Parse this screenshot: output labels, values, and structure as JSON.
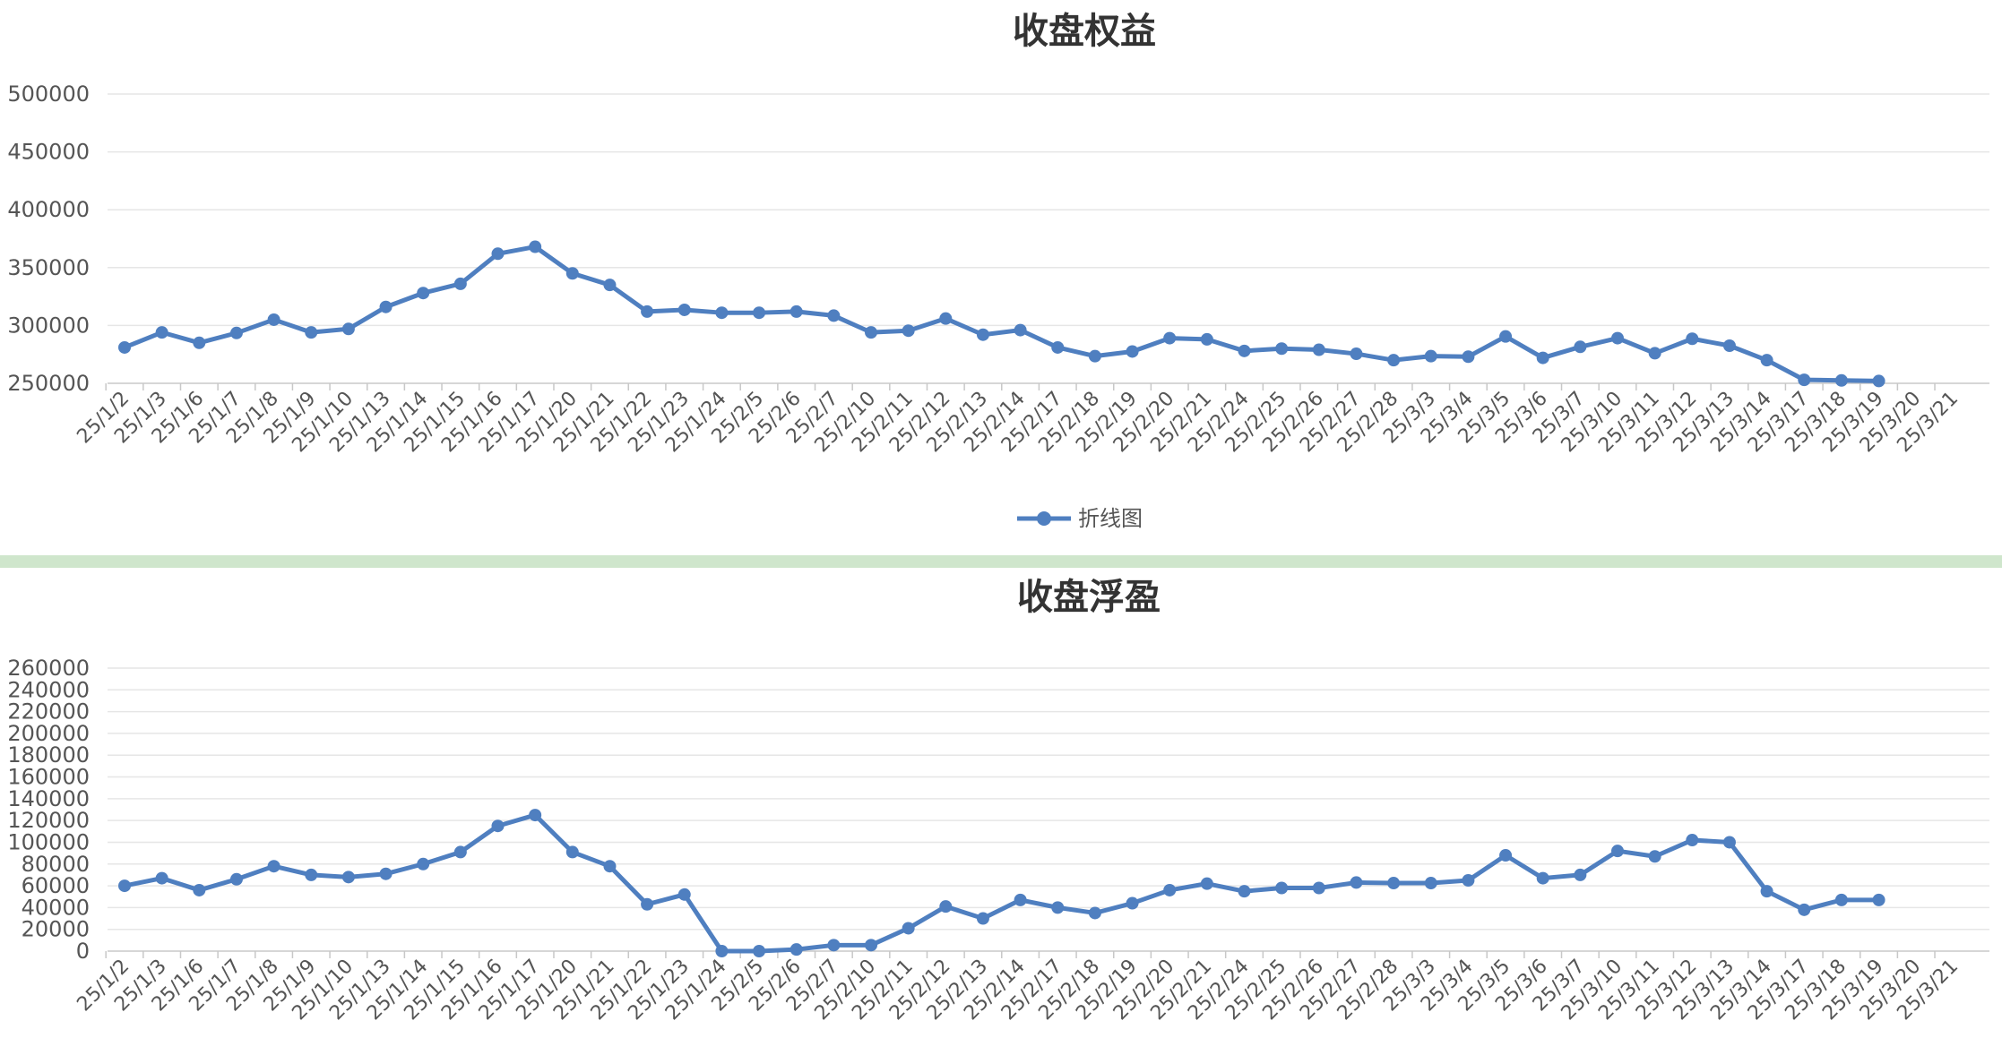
{
  "chart_data": [
    {
      "type": "line",
      "title": "收盘权益",
      "categories": [
        "25/1/2",
        "25/1/3",
        "25/1/6",
        "25/1/7",
        "25/1/8",
        "25/1/9",
        "25/1/10",
        "25/1/13",
        "25/1/14",
        "25/1/15",
        "25/1/16",
        "25/1/17",
        "25/1/20",
        "25/1/21",
        "25/1/22",
        "25/1/23",
        "25/1/24",
        "25/2/5",
        "25/2/6",
        "25/2/7",
        "25/2/10",
        "25/2/11",
        "25/2/12",
        "25/2/13",
        "25/2/14",
        "25/2/17",
        "25/2/18",
        "25/2/19",
        "25/2/20",
        "25/2/21",
        "25/2/24",
        "25/2/25",
        "25/2/26",
        "25/2/27",
        "25/2/28",
        "25/3/3",
        "25/3/4",
        "25/3/5",
        "25/3/6",
        "25/3/7",
        "25/3/10",
        "25/3/11",
        "25/3/12",
        "25/3/13",
        "25/3/14",
        "25/3/17",
        "25/3/18",
        "25/3/19",
        "25/3/20",
        "25/3/21"
      ],
      "series": [
        {
          "name": "折线图",
          "color": "#4f7fc0",
          "values": [
            281000,
            294000,
            285000,
            293500,
            305000,
            294000,
            297000,
            316000,
            328000,
            336000,
            362000,
            368000,
            345000,
            335000,
            312000,
            313500,
            311000,
            311000,
            312000,
            308500,
            294000,
            295500,
            306000,
            292000,
            296000,
            281000,
            273500,
            277500,
            289000,
            288000,
            278000,
            280000,
            279000,
            275500,
            270000,
            273500,
            273000,
            290500,
            272000,
            281500,
            289000,
            276000,
            288500,
            282500,
            270000,
            253000,
            252500,
            252000,
            null,
            null
          ]
        }
      ],
      "ylim": [
        250000,
        500000
      ],
      "yticks": [
        250000,
        300000,
        350000,
        400000,
        450000,
        500000
      ],
      "legend": "bottom-center",
      "grid": true
    },
    {
      "type": "line",
      "title": "收盘浮盈",
      "categories": [
        "25/1/2",
        "25/1/3",
        "25/1/6",
        "25/1/7",
        "25/1/8",
        "25/1/9",
        "25/1/10",
        "25/1/13",
        "25/1/14",
        "25/1/15",
        "25/1/16",
        "25/1/17",
        "25/1/20",
        "25/1/21",
        "25/1/22",
        "25/1/23",
        "25/1/24",
        "25/2/5",
        "25/2/6",
        "25/2/7",
        "25/2/10",
        "25/2/11",
        "25/2/12",
        "25/2/13",
        "25/2/14",
        "25/2/17",
        "25/2/18",
        "25/2/19",
        "25/2/20",
        "25/2/21",
        "25/2/24",
        "25/2/25",
        "25/2/26",
        "25/2/27",
        "25/2/28",
        "25/3/3",
        "25/3/4",
        "25/3/5",
        "25/3/6",
        "25/3/7",
        "25/3/10",
        "25/3/11",
        "25/3/12",
        "25/3/13",
        "25/3/14",
        "25/3/17",
        "25/3/18",
        "25/3/19",
        "25/3/20",
        "25/3/21"
      ],
      "series": [
        {
          "color": "#4f7fc0",
          "values": [
            60000,
            67000,
            56000,
            66000,
            78000,
            70000,
            68000,
            71000,
            80000,
            91000,
            115000,
            125000,
            91000,
            78000,
            43000,
            52000,
            0,
            0,
            1500,
            5500,
            5500,
            21000,
            41000,
            30000,
            47000,
            40000,
            35000,
            44000,
            56000,
            62000,
            55000,
            58000,
            58000,
            63000,
            62500,
            62500,
            65000,
            88000,
            67000,
            70000,
            92000,
            87000,
            102000,
            100000,
            55000,
            38000,
            47000,
            47000,
            null,
            null
          ]
        }
      ],
      "ylim": [
        0,
        260000
      ],
      "yticks": [
        0,
        20000,
        40000,
        60000,
        80000,
        100000,
        120000,
        140000,
        160000,
        180000,
        200000,
        220000,
        240000,
        260000
      ],
      "grid": true
    }
  ]
}
